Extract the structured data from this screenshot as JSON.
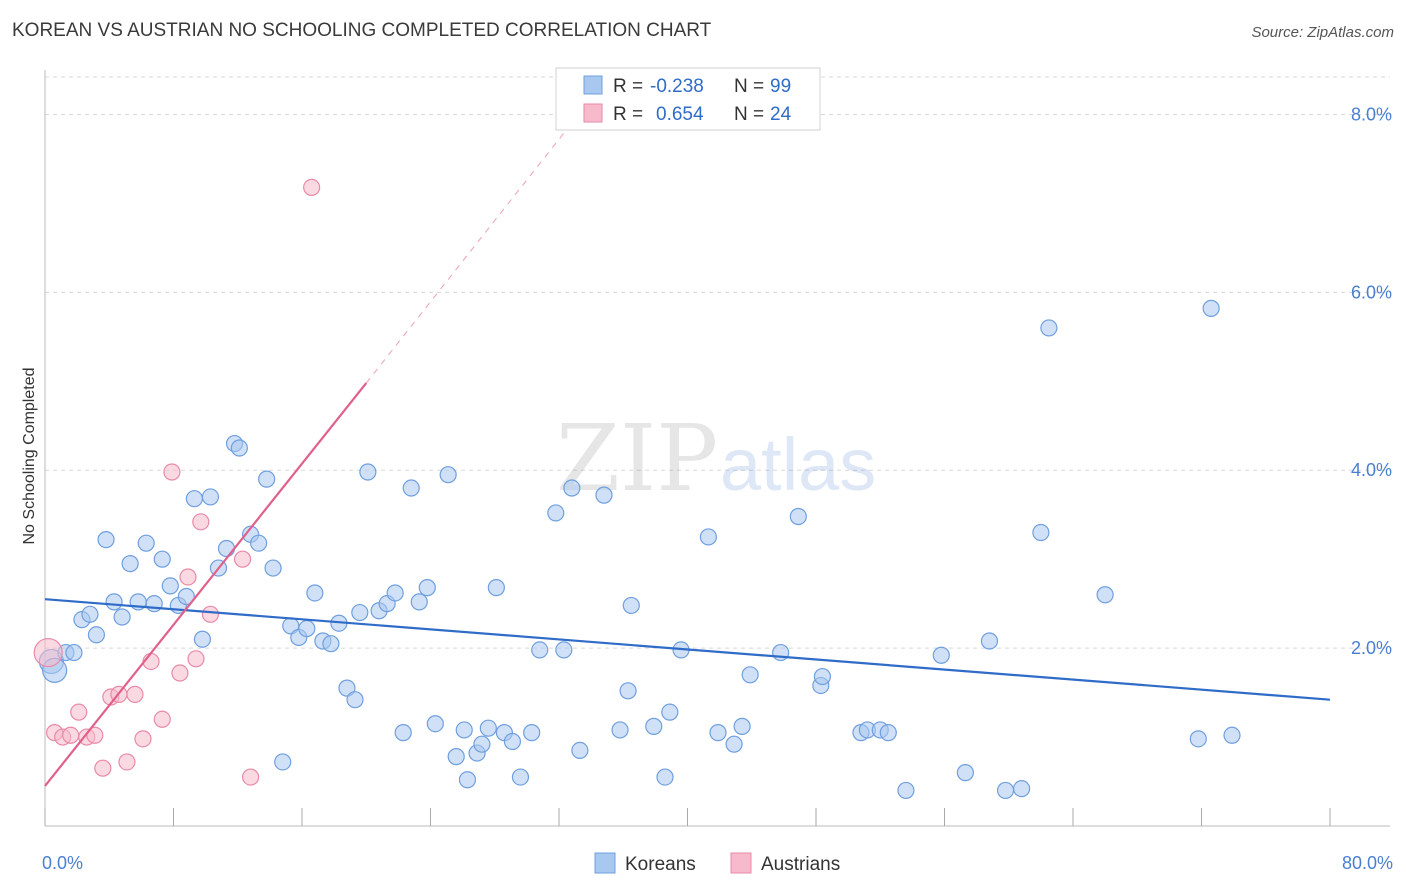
{
  "title": "KOREAN VS AUSTRIAN NO SCHOOLING COMPLETED CORRELATION CHART",
  "source": "Source: ZipAtlas.com",
  "watermark": {
    "zip": "ZIP",
    "atlas": "atlas"
  },
  "colors": {
    "koreans_fill": "#a9c8f0",
    "koreans_stroke": "#6f9fdf",
    "koreans_line": "#2f6cc8",
    "austrians_fill": "#f7b9cc",
    "austrians_stroke": "#e88aa8",
    "austrians_line": "#e0608a",
    "grid": "#d8d8d8",
    "axis_text": "#4a7fd0"
  },
  "stats_legend": [
    {
      "r_label": "R =",
      "r_value": "-0.238",
      "n_label": "N =",
      "n_value": "99"
    },
    {
      "r_label": "R =",
      "r_value": "0.654",
      "n_label": "N =",
      "n_value": "24"
    }
  ],
  "chart_data": {
    "type": "scatter",
    "ylabel": "No Schooling Completed",
    "x_range": [
      0,
      80
    ],
    "y_range": [
      0,
      8.5
    ],
    "x_tick_labels": [
      {
        "value": 0,
        "label": "0.0%"
      },
      {
        "value": 80,
        "label": "80.0%"
      }
    ],
    "y_tick_labels": [
      {
        "value": 2,
        "label": "2.0%"
      },
      {
        "value": 4,
        "label": "4.0%"
      },
      {
        "value": 6,
        "label": "6.0%"
      },
      {
        "value": 8,
        "label": "8.0%"
      }
    ],
    "grid": true,
    "legend_position": "bottom-center",
    "series": [
      {
        "name": "Koreans",
        "trend": {
          "x0": 0,
          "y0": 2.55,
          "x1": 80,
          "y1": 1.42
        },
        "points": [
          [
            0.4,
            1.85
          ],
          [
            0.6,
            1.75
          ],
          [
            1.3,
            1.95
          ],
          [
            1.8,
            1.95
          ],
          [
            2.3,
            2.32
          ],
          [
            2.8,
            2.38
          ],
          [
            3.2,
            2.15
          ],
          [
            3.8,
            3.22
          ],
          [
            4.3,
            2.52
          ],
          [
            4.8,
            2.35
          ],
          [
            5.3,
            2.95
          ],
          [
            5.8,
            2.52
          ],
          [
            6.3,
            3.18
          ],
          [
            6.8,
            2.5
          ],
          [
            7.3,
            3.0
          ],
          [
            7.8,
            2.7
          ],
          [
            8.3,
            2.48
          ],
          [
            8.8,
            2.58
          ],
          [
            9.3,
            3.68
          ],
          [
            9.8,
            2.1
          ],
          [
            10.3,
            3.7
          ],
          [
            10.8,
            2.9
          ],
          [
            11.3,
            3.12
          ],
          [
            11.8,
            4.3
          ],
          [
            12.1,
            4.25
          ],
          [
            12.8,
            3.28
          ],
          [
            13.3,
            3.18
          ],
          [
            13.8,
            3.9
          ],
          [
            14.2,
            2.9
          ],
          [
            14.8,
            0.72
          ],
          [
            15.3,
            2.25
          ],
          [
            15.8,
            2.12
          ],
          [
            16.3,
            2.22
          ],
          [
            16.8,
            2.62
          ],
          [
            17.3,
            2.08
          ],
          [
            17.8,
            2.05
          ],
          [
            18.3,
            2.28
          ],
          [
            18.8,
            1.55
          ],
          [
            19.3,
            1.42
          ],
          [
            19.6,
            2.4
          ],
          [
            20.1,
            3.98
          ],
          [
            20.8,
            2.42
          ],
          [
            21.3,
            2.5
          ],
          [
            21.8,
            2.62
          ],
          [
            22.3,
            1.05
          ],
          [
            22.8,
            3.8
          ],
          [
            23.3,
            2.52
          ],
          [
            23.8,
            2.68
          ],
          [
            24.3,
            1.15
          ],
          [
            25.1,
            3.95
          ],
          [
            25.6,
            0.78
          ],
          [
            26.1,
            1.08
          ],
          [
            26.3,
            0.52
          ],
          [
            26.9,
            0.82
          ],
          [
            27.2,
            0.92
          ],
          [
            27.6,
            1.1
          ],
          [
            28.1,
            2.68
          ],
          [
            28.6,
            1.05
          ],
          [
            29.1,
            0.95
          ],
          [
            29.6,
            0.55
          ],
          [
            30.3,
            1.05
          ],
          [
            30.8,
            1.98
          ],
          [
            31.8,
            3.52
          ],
          [
            32.3,
            1.98
          ],
          [
            32.8,
            3.8
          ],
          [
            33.3,
            0.85
          ],
          [
            34.8,
            3.72
          ],
          [
            35.8,
            1.08
          ],
          [
            36.3,
            1.52
          ],
          [
            36.5,
            2.48
          ],
          [
            37.9,
            1.12
          ],
          [
            38.6,
            0.55
          ],
          [
            38.9,
            1.28
          ],
          [
            39.6,
            1.98
          ],
          [
            41.3,
            3.25
          ],
          [
            41.9,
            1.05
          ],
          [
            42.9,
            0.92
          ],
          [
            43.4,
            1.12
          ],
          [
            43.9,
            1.7
          ],
          [
            46.9,
            3.48
          ],
          [
            45.8,
            1.95
          ],
          [
            48.3,
            1.58
          ],
          [
            48.4,
            1.68
          ],
          [
            50.8,
            1.05
          ],
          [
            51.2,
            1.08
          ],
          [
            52.0,
            1.08
          ],
          [
            52.5,
            1.05
          ],
          [
            53.6,
            0.4
          ],
          [
            55.8,
            1.92
          ],
          [
            57.3,
            0.6
          ],
          [
            58.8,
            2.08
          ],
          [
            59.8,
            0.4
          ],
          [
            60.8,
            0.42
          ],
          [
            62.0,
            3.3
          ],
          [
            62.5,
            5.6
          ],
          [
            66.0,
            2.6
          ],
          [
            71.8,
            0.98
          ],
          [
            72.6,
            5.82
          ],
          [
            73.9,
            1.02
          ]
        ]
      },
      {
        "name": "Austrians",
        "trend": {
          "x0": 0,
          "y0": 0.45,
          "x1": 20,
          "y1": 4.98
        },
        "trend_dashed_to": {
          "x": 33,
          "y": 7.95
        },
        "points": [
          [
            0.2,
            1.95
          ],
          [
            0.6,
            1.05
          ],
          [
            1.1,
            1.0
          ],
          [
            1.6,
            1.02
          ],
          [
            2.1,
            1.28
          ],
          [
            2.6,
            1.0
          ],
          [
            3.1,
            1.02
          ],
          [
            3.6,
            0.65
          ],
          [
            4.1,
            1.45
          ],
          [
            4.6,
            1.48
          ],
          [
            5.1,
            0.72
          ],
          [
            5.6,
            1.48
          ],
          [
            6.1,
            0.98
          ],
          [
            6.6,
            1.85
          ],
          [
            7.3,
            1.2
          ],
          [
            7.9,
            3.98
          ],
          [
            8.4,
            1.72
          ],
          [
            8.9,
            2.8
          ],
          [
            9.4,
            1.88
          ],
          [
            9.7,
            3.42
          ],
          [
            10.3,
            2.38
          ],
          [
            12.3,
            3.0
          ],
          [
            12.8,
            0.55
          ],
          [
            16.6,
            7.18
          ]
        ]
      }
    ]
  }
}
